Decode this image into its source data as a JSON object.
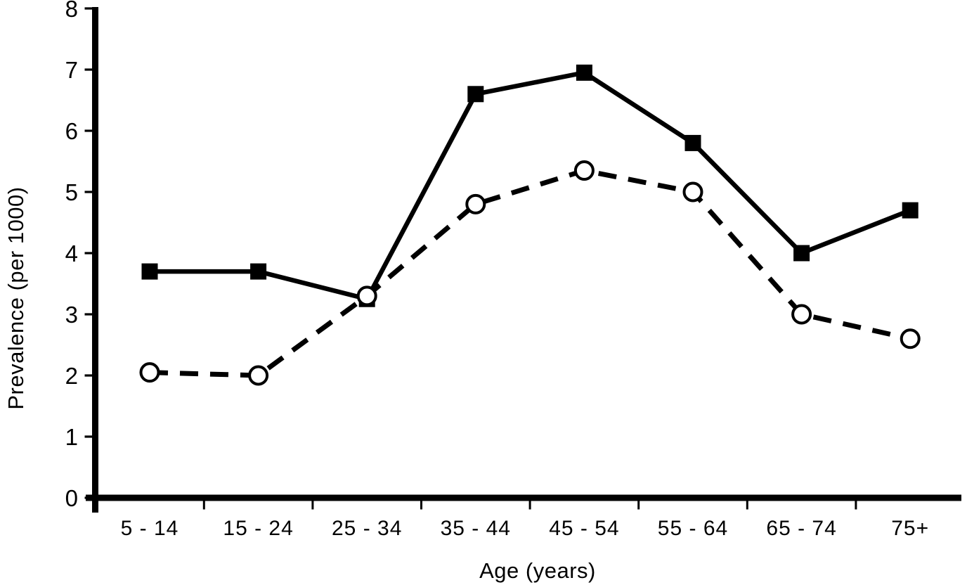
{
  "page": {
    "background": "#ffffff"
  },
  "chart_data": {
    "type": "line",
    "title": "",
    "xlabel": "Age (years)",
    "ylabel": "Prevalence (per 1000)",
    "categories": [
      "5 - 14",
      "15 - 24",
      "25 - 34",
      "35 - 44",
      "45 - 54",
      "55 - 64",
      "65 - 74",
      "75+"
    ],
    "series": [
      {
        "name": "solid-line-filled-squares",
        "marker": "filled-square",
        "line_style": "solid",
        "color": "#000000",
        "values": [
          3.7,
          3.7,
          3.25,
          6.6,
          6.95,
          5.8,
          4.0,
          4.7
        ]
      },
      {
        "name": "dashed-line-open-circles",
        "marker": "open-circle",
        "line_style": "dashed",
        "color": "#000000",
        "values": [
          2.05,
          2.0,
          3.3,
          4.8,
          5.35,
          5.0,
          3.0,
          2.6
        ]
      }
    ],
    "ylim": [
      0,
      8
    ],
    "y_ticks": [
      "0",
      "1",
      "2",
      "3",
      "4",
      "5",
      "6",
      "7",
      "8"
    ],
    "grid": false,
    "legend": "none",
    "axis_color": "#000000",
    "marker_fill": "#ffffff"
  }
}
